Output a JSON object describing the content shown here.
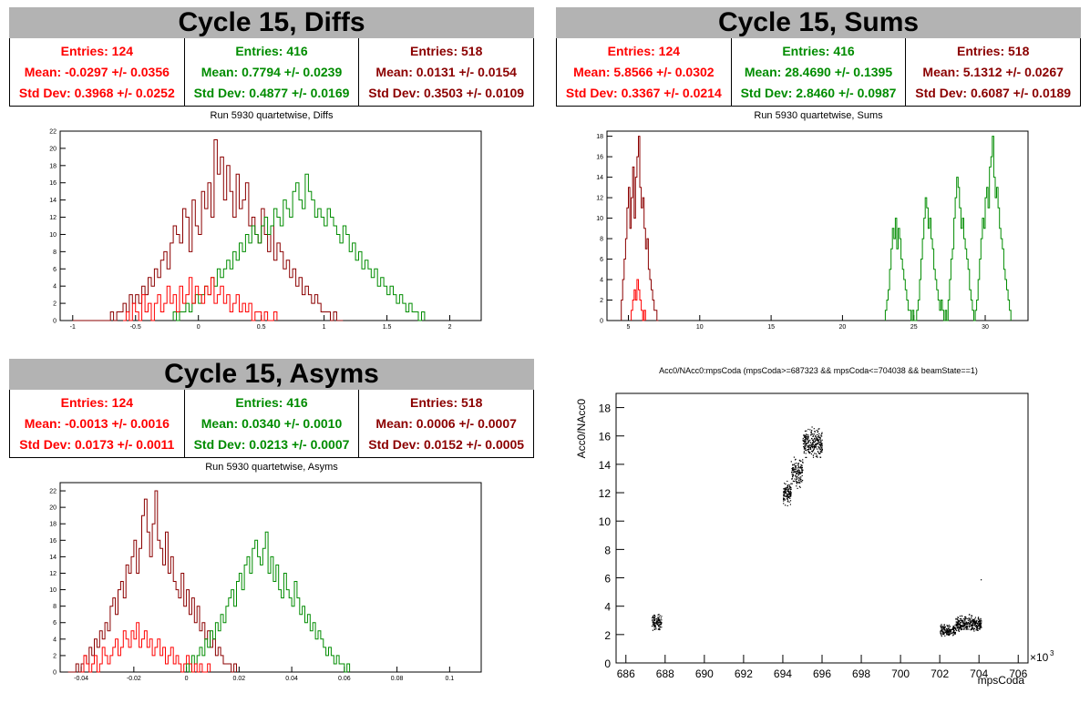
{
  "panels": {
    "diffs": {
      "title": "Cycle 15, Diffs",
      "subtitle": "Run 5930 quartetwise, Diffs",
      "stats": [
        {
          "entries": "Entries: 124",
          "mean": "Mean: -0.0297 +/- 0.0356",
          "std": "Std Dev: 0.3968 +/- 0.0252"
        },
        {
          "entries": "Entries: 416",
          "mean": "Mean: 0.7794 +/- 0.0239",
          "std": "Std Dev: 0.4877 +/- 0.0169"
        },
        {
          "entries": "Entries: 518",
          "mean": "Mean: 0.0131 +/- 0.0154",
          "std": "Std Dev: 0.3503 +/- 0.0109"
        }
      ]
    },
    "sums": {
      "title": "Cycle 15, Sums",
      "subtitle": "Run 5930 quartetwise, Sums",
      "stats": [
        {
          "entries": "Entries: 124",
          "mean": "Mean: 5.8566 +/- 0.0302",
          "std": "Std Dev: 0.3367 +/- 0.0214"
        },
        {
          "entries": "Entries: 416",
          "mean": "Mean: 28.4690 +/- 0.1395",
          "std": "Std Dev: 2.8460 +/- 0.0987"
        },
        {
          "entries": "Entries: 518",
          "mean": "Mean: 5.1312 +/- 0.0267",
          "std": "Std Dev: 0.6087 +/- 0.0189"
        }
      ]
    },
    "asyms": {
      "title": "Cycle 15, Asyms",
      "subtitle": "Run 5930 quartetwise, Asyms",
      "stats": [
        {
          "entries": "Entries: 124",
          "mean": "Mean: -0.0013 +/- 0.0016",
          "std": "Std Dev: 0.0173 +/- 0.0011"
        },
        {
          "entries": "Entries: 416",
          "mean": "Mean: 0.0340 +/- 0.0010",
          "std": "Std Dev: 0.0213 +/- 0.0007"
        },
        {
          "entries": "Entries: 518",
          "mean": "Mean: 0.0006 +/- 0.0007",
          "std": "Std Dev: 0.0152 +/- 0.0005"
        }
      ]
    },
    "scatter": {
      "title": "Acc0/NAcc0:mpsCoda (mpsCoda>=687323 && mpsCoda<=704038 && beamState==1)"
    }
  },
  "colors": {
    "red": "#ff0000",
    "green": "#008c00",
    "dark": "#8b0000",
    "header": "#b3b3b3"
  },
  "chart_data": [
    {
      "type": "histogram",
      "name": "diffs",
      "xlim": [
        -1.1,
        2.25
      ],
      "ylim": [
        0,
        22
      ],
      "xticks": [
        -1,
        -0.5,
        0,
        0.5,
        1,
        1.5,
        2
      ],
      "yticks": [
        0,
        2,
        4,
        6,
        8,
        10,
        12,
        14,
        16,
        18,
        20,
        22
      ],
      "series": [
        {
          "color": "#8b0000",
          "x_start": -1.0,
          "bin_width": 0.025,
          "values": [
            0,
            0,
            0,
            0,
            0,
            0,
            0,
            0,
            0,
            0,
            0,
            0,
            1,
            0,
            1,
            1,
            2,
            1,
            3,
            2,
            3,
            2,
            4,
            3,
            5,
            4,
            6,
            5,
            7,
            8,
            6,
            9,
            11,
            10,
            9,
            13,
            12,
            8,
            14,
            11,
            10,
            15,
            13,
            16,
            12,
            21,
            17,
            19,
            14,
            18,
            15,
            12,
            17,
            13,
            14,
            16,
            11,
            12,
            10,
            9,
            13,
            10,
            8,
            11,
            7,
            9,
            8,
            6,
            7,
            5,
            6,
            4,
            5,
            3,
            4,
            3,
            2,
            3,
            2,
            1,
            1,
            1,
            0,
            1,
            0,
            0
          ]
        },
        {
          "color": "#008c00",
          "x_start": -0.2,
          "bin_width": 0.025,
          "values": [
            1,
            0,
            1,
            1,
            2,
            1,
            2,
            3,
            2,
            3,
            4,
            3,
            5,
            4,
            6,
            5,
            6,
            7,
            6,
            8,
            7,
            9,
            8,
            10,
            9,
            11,
            10,
            9,
            11,
            12,
            10,
            11,
            13,
            12,
            11,
            14,
            13,
            12,
            15,
            16,
            14,
            13,
            17,
            15,
            14,
            12,
            13,
            12,
            11,
            13,
            12,
            11,
            10,
            9,
            11,
            10,
            8,
            9,
            7,
            8,
            6,
            7,
            6,
            5,
            6,
            4,
            5,
            4,
            3,
            4,
            3,
            2,
            3,
            2,
            1,
            2,
            1,
            1,
            0,
            1
          ]
        },
        {
          "color": "#ff0000",
          "x_start": -0.6,
          "bin_width": 0.025,
          "values": [
            0,
            1,
            0,
            2,
            1,
            0,
            3,
            1,
            2,
            0,
            2,
            3,
            1,
            2,
            4,
            2,
            3,
            1,
            4,
            2,
            3,
            5,
            2,
            4,
            3,
            2,
            4,
            3,
            5,
            2,
            3,
            4,
            2,
            3,
            1,
            2,
            3,
            1,
            2,
            1,
            2,
            0,
            1,
            1,
            0,
            1,
            0,
            0,
            1
          ]
        }
      ]
    },
    {
      "type": "histogram",
      "name": "sums",
      "xlim": [
        3.5,
        33
      ],
      "ylim": [
        0,
        18.5
      ],
      "xticks": [
        5,
        10,
        15,
        20,
        25,
        30
      ],
      "yticks": [
        0,
        2,
        4,
        6,
        8,
        10,
        12,
        14,
        16,
        18
      ],
      "series": [
        {
          "color": "#8b0000",
          "x_start": 4.5,
          "bin_width": 0.1,
          "values": [
            2,
            4,
            6,
            8,
            11,
            13,
            9,
            12,
            15,
            10,
            14,
            16,
            18,
            13,
            11,
            12,
            9,
            7,
            8,
            5,
            4,
            3,
            2,
            1,
            1,
            0
          ]
        },
        {
          "color": "#ff0000",
          "x_start": 5.2,
          "bin_width": 0.1,
          "values": [
            1,
            2,
            3,
            2,
            4,
            3,
            2,
            1,
            0,
            1
          ]
        },
        {
          "color": "#008c00",
          "x_start": 23.0,
          "bin_width": 0.1,
          "values": [
            1,
            2,
            3,
            5,
            7,
            9,
            8,
            10,
            7,
            9,
            8,
            6,
            5,
            4,
            3,
            2,
            1,
            1,
            0,
            1,
            0,
            0,
            1,
            2,
            4,
            6,
            8,
            10,
            12,
            11,
            9,
            10,
            8,
            7,
            5,
            4,
            3,
            2,
            1,
            2,
            1,
            0,
            1,
            0,
            2,
            4,
            6,
            7,
            10,
            12,
            14,
            13,
            11,
            9,
            10,
            8,
            7,
            6,
            5,
            3,
            2,
            1,
            0,
            1,
            2,
            4,
            6,
            8,
            10,
            9,
            12,
            13,
            11,
            15,
            16,
            18,
            14,
            12,
            13,
            11,
            9,
            8,
            7,
            5,
            4,
            3,
            2,
            1
          ]
        }
      ]
    },
    {
      "type": "histogram",
      "name": "asyms",
      "xlim": [
        -0.048,
        0.112
      ],
      "ylim": [
        0,
        23
      ],
      "xticks": [
        -0.04,
        -0.02,
        0,
        0.02,
        0.04,
        0.06,
        0.08,
        0.1
      ],
      "yticks": [
        0,
        2,
        4,
        6,
        8,
        10,
        12,
        14,
        16,
        18,
        20,
        22
      ],
      "series": [
        {
          "color": "#8b0000",
          "x_start": -0.045,
          "bin_width": 0.001,
          "values": [
            0,
            0,
            0,
            1,
            0,
            1,
            2,
            1,
            3,
            2,
            4,
            3,
            5,
            4,
            6,
            5,
            8,
            9,
            7,
            10,
            11,
            9,
            13,
            12,
            14,
            16,
            12,
            15,
            19,
            21,
            17,
            14,
            18,
            22,
            16,
            15,
            13,
            17,
            12,
            14,
            11,
            10,
            9,
            12,
            8,
            10,
            7,
            9,
            6,
            8,
            5,
            6,
            4,
            5,
            3,
            4,
            2,
            3,
            2,
            1,
            1,
            1,
            0,
            1
          ]
        },
        {
          "color": "#008c00",
          "x_start": 0.0,
          "bin_width": 0.001,
          "values": [
            1,
            0,
            2,
            1,
            2,
            3,
            2,
            4,
            3,
            5,
            4,
            6,
            5,
            7,
            6,
            8,
            9,
            10,
            8,
            11,
            12,
            10,
            13,
            14,
            12,
            15,
            16,
            14,
            13,
            15,
            17,
            12,
            14,
            11,
            13,
            10,
            9,
            12,
            10,
            9,
            8,
            11,
            9,
            7,
            8,
            6,
            7,
            5,
            6,
            4,
            5,
            4,
            3,
            2,
            3,
            2,
            1,
            2,
            1,
            1,
            0,
            1
          ]
        },
        {
          "color": "#ff0000",
          "x_start": -0.04,
          "bin_width": 0.001,
          "values": [
            0,
            2,
            1,
            0,
            1,
            2,
            0,
            1,
            3,
            2,
            1,
            2,
            3,
            4,
            2,
            3,
            5,
            4,
            3,
            5,
            4,
            6,
            3,
            4,
            5,
            3,
            4,
            2,
            3,
            4,
            2,
            3,
            1,
            2,
            3,
            1,
            2,
            1,
            0,
            1,
            2,
            1,
            0,
            1,
            0,
            1,
            0,
            0,
            1
          ]
        }
      ]
    },
    {
      "type": "scatter",
      "name": "scatter",
      "xlabel": "mpsCoda",
      "ylabel": "Acc0/NAcc0",
      "x_multiplier": "×10",
      "x_multiplier_exp": "3",
      "xlim": [
        685.5,
        706.5
      ],
      "ylim": [
        0,
        19
      ],
      "xticks": [
        686,
        688,
        690,
        692,
        694,
        696,
        698,
        700,
        702,
        704,
        706
      ],
      "yticks": [
        0,
        2,
        4,
        6,
        8,
        10,
        12,
        14,
        16,
        18
      ],
      "clusters": [
        {
          "x_range": [
            687.3,
            687.8
          ],
          "y_center": 2.9,
          "y_spread": 0.5,
          "count": 120
        },
        {
          "x_range": [
            694.0,
            694.4
          ],
          "y_center": 12.0,
          "y_spread": 0.7,
          "count": 120
        },
        {
          "x_range": [
            694.4,
            695.0
          ],
          "y_center": 13.5,
          "y_spread": 0.9,
          "count": 140
        },
        {
          "x_range": [
            695.0,
            696.0
          ],
          "y_center": 15.5,
          "y_spread": 0.9,
          "count": 260
        },
        {
          "x_range": [
            702.0,
            702.8
          ],
          "y_center": 2.3,
          "y_spread": 0.4,
          "count": 160
        },
        {
          "x_range": [
            702.8,
            704.1
          ],
          "y_center": 2.8,
          "y_spread": 0.5,
          "count": 320
        },
        {
          "x_range": [
            704.0,
            704.1
          ],
          "y_center": 5.9,
          "y_spread": 0.1,
          "count": 1
        }
      ]
    }
  ]
}
